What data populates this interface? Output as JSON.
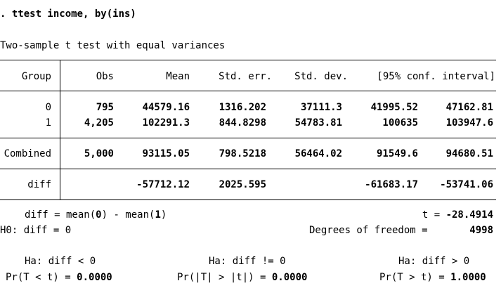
{
  "command": ". ttest income, by(ins)",
  "heading": "Two-sample t test with equal variances",
  "columns": {
    "group": "Group",
    "obs": "Obs",
    "mean": "Mean",
    "std_err": "Std. err.",
    "std_dev": "Std. dev.",
    "ci": "[95% conf. interval]"
  },
  "rows": [
    {
      "group": "0",
      "obs": "795",
      "mean": "44579.16",
      "std_err": "1316.202",
      "std_dev": "37111.3",
      "ci_low": "41995.52",
      "ci_high": "47162.81"
    },
    {
      "group": "1",
      "obs": "4,205",
      "mean": "102291.3",
      "std_err": "844.8298",
      "std_dev": "54783.81",
      "ci_low": "100635",
      "ci_high": "103947.6"
    }
  ],
  "combined": {
    "group": "Combined",
    "obs": "5,000",
    "mean": "93115.05",
    "std_err": "798.5218",
    "std_dev": "56464.02",
    "ci_low": "91549.6",
    "ci_high": "94680.51"
  },
  "diff_row": {
    "group": "diff",
    "mean": "-57712.12",
    "std_err": "2025.595",
    "ci_low": "-61683.17",
    "ci_high": "-53741.06"
  },
  "stats": {
    "diff_def_prefix": "diff = mean(",
    "diff_def_g0": "0",
    "diff_def_mid": ") - mean(",
    "diff_def_g1": "1",
    "diff_def_suffix": ")",
    "t_label": "t = ",
    "t_value": "-28.4914",
    "h0": "H0: diff = 0",
    "df_label": "Degrees of freedom = ",
    "df_value": "4998"
  },
  "tests": [
    {
      "ha": "Ha: diff < 0",
      "pr_label": "Pr(T < t) = ",
      "pr_value": "0.0000"
    },
    {
      "ha": "Ha: diff != 0",
      "pr_label": "Pr(|T| > |t|) = ",
      "pr_value": "0.0000"
    },
    {
      "ha": "Ha: diff > 0",
      "pr_label": "Pr(T > t) = ",
      "pr_value": "1.0000"
    }
  ]
}
